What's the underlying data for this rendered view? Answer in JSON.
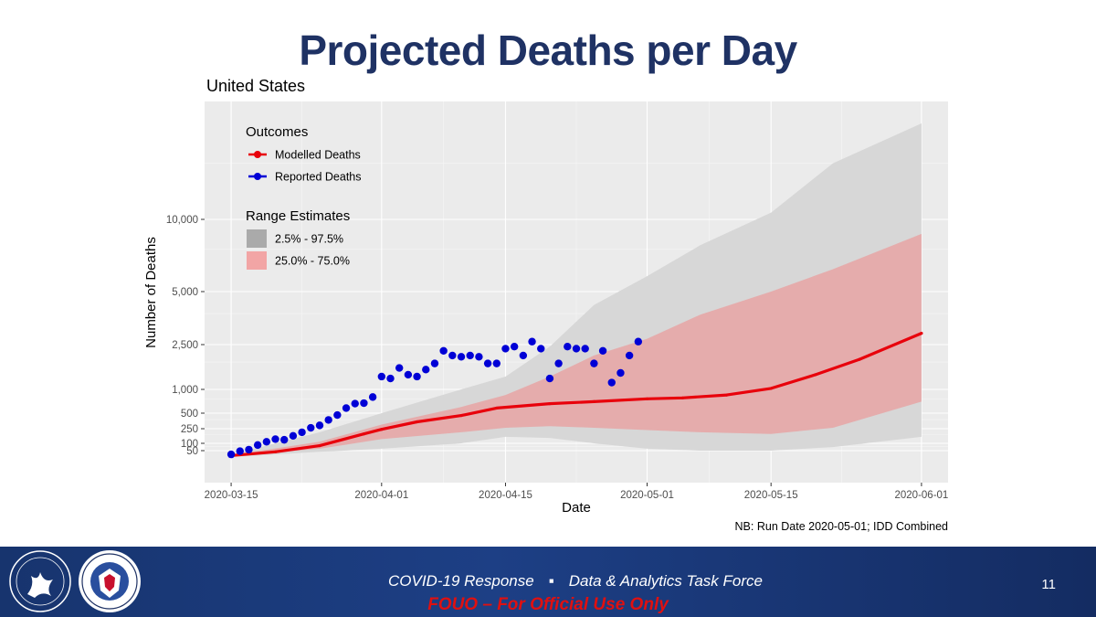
{
  "slide": {
    "title": "Projected Deaths per Day",
    "note": "NB: Run Date 2020-05-01; IDD Combined"
  },
  "footer": {
    "left_text": "COVID-19 Response",
    "separator": "▪",
    "right_text": "Data & Analytics Task Force",
    "classification": "FOUO – For Official Use Only",
    "page_number": "11",
    "logos": [
      "hhs-seal",
      "dhs-seal"
    ]
  },
  "chart_data": {
    "type": "line",
    "title": "United States",
    "xlabel": "Date",
    "ylabel": "Number of Deaths",
    "y_scale": "pseudo-log",
    "grid": true,
    "legend_position": "top-left",
    "x_ticks": [
      "2020-03-15",
      "2020-04-01",
      "2020-04-15",
      "2020-05-01",
      "2020-05-15",
      "2020-06-01"
    ],
    "y_ticks": [
      "50",
      "100",
      "250",
      "500",
      "1,000",
      "2,500",
      "5,000",
      "10,000"
    ],
    "y_tick_values": [
      50,
      100,
      250,
      500,
      1000,
      2500,
      5000,
      10000
    ],
    "legend": {
      "outcomes_title": "Outcomes",
      "outcomes": [
        {
          "label": "Modelled Deaths",
          "color": "#e8000b"
        },
        {
          "label": "Reported Deaths",
          "color": "#0000d6"
        }
      ],
      "ranges_title": "Range Estimates",
      "ranges": [
        {
          "label": "2.5% - 97.5%",
          "color": "#aaaaaa"
        },
        {
          "label": "25.0% - 75.0%",
          "color": "#f2a5a5"
        }
      ]
    },
    "series": [
      {
        "name": "Modelled Deaths",
        "color": "#e8000b",
        "x": [
          "2020-03-15",
          "2020-03-20",
          "2020-03-25",
          "2020-03-30",
          "2020-04-01",
          "2020-04-05",
          "2020-04-10",
          "2020-04-14",
          "2020-04-20",
          "2020-04-25",
          "2020-05-01",
          "2020-05-05",
          "2020-05-10",
          "2020-05-15",
          "2020-05-20",
          "2020-05-25",
          "2020-06-01"
        ],
        "values": [
          20,
          40,
          80,
          180,
          240,
          340,
          450,
          580,
          660,
          700,
          760,
          780,
          850,
          1020,
          1350,
          1850,
          2900
        ]
      },
      {
        "name": "Reported Deaths",
        "color": "#0000d6",
        "x": [
          "2020-03-15",
          "2020-03-16",
          "2020-03-17",
          "2020-03-18",
          "2020-03-19",
          "2020-03-20",
          "2020-03-21",
          "2020-03-22",
          "2020-03-23",
          "2020-03-24",
          "2020-03-25",
          "2020-03-26",
          "2020-03-27",
          "2020-03-28",
          "2020-03-29",
          "2020-03-30",
          "2020-03-31",
          "2020-04-01",
          "2020-04-02",
          "2020-04-03",
          "2020-04-04",
          "2020-04-05",
          "2020-04-06",
          "2020-04-07",
          "2020-04-08",
          "2020-04-09",
          "2020-04-10",
          "2020-04-11",
          "2020-04-12",
          "2020-04-13",
          "2020-04-14",
          "2020-04-15",
          "2020-04-16",
          "2020-04-17",
          "2020-04-18",
          "2020-04-19",
          "2020-04-20",
          "2020-04-21",
          "2020-04-22",
          "2020-04-23",
          "2020-04-24",
          "2020-04-25",
          "2020-04-26",
          "2020-04-27",
          "2020-04-28",
          "2020-04-29",
          "2020-04-30"
        ],
        "values": [
          25,
          45,
          55,
          85,
          110,
          130,
          125,
          160,
          200,
          260,
          290,
          370,
          460,
          580,
          660,
          670,
          800,
          1300,
          1250,
          1550,
          1350,
          1300,
          1500,
          1700,
          2200,
          2000,
          1950,
          2000,
          1950,
          1700,
          1700,
          2300,
          2400,
          2000,
          2600,
          2300,
          1250,
          1700,
          2400,
          2300,
          2300,
          1700,
          2200,
          1150,
          1400,
          2000,
          2600
        ]
      }
    ],
    "bands": [
      {
        "name": "2.5% - 97.5%",
        "color": "#d7d7d7",
        "x": [
          "2020-03-15",
          "2020-03-25",
          "2020-04-01",
          "2020-04-10",
          "2020-04-15",
          "2020-04-20",
          "2020-04-25",
          "2020-05-01",
          "2020-05-07",
          "2020-05-15",
          "2020-05-22",
          "2020-06-01"
        ],
        "lower": [
          15,
          40,
          60,
          100,
          150,
          140,
          100,
          60,
          50,
          50,
          70,
          150
        ],
        "upper": [
          25,
          200,
          500,
          1000,
          1300,
          2400,
          4200,
          5800,
          7800,
          10500,
          15000,
          20000
        ]
      },
      {
        "name": "25.0% - 75.0%",
        "color": "#e8a4a4",
        "x": [
          "2020-03-15",
          "2020-03-25",
          "2020-04-01",
          "2020-04-10",
          "2020-04-15",
          "2020-04-20",
          "2020-04-25",
          "2020-05-01",
          "2020-05-07",
          "2020-05-15",
          "2020-05-22",
          "2020-06-01"
        ],
        "lower": [
          18,
          60,
          130,
          200,
          260,
          280,
          260,
          230,
          200,
          180,
          260,
          700
        ],
        "upper": [
          22,
          110,
          300,
          600,
          850,
          1300,
          2000,
          2700,
          3700,
          5000,
          6200,
          8700
        ]
      }
    ]
  }
}
